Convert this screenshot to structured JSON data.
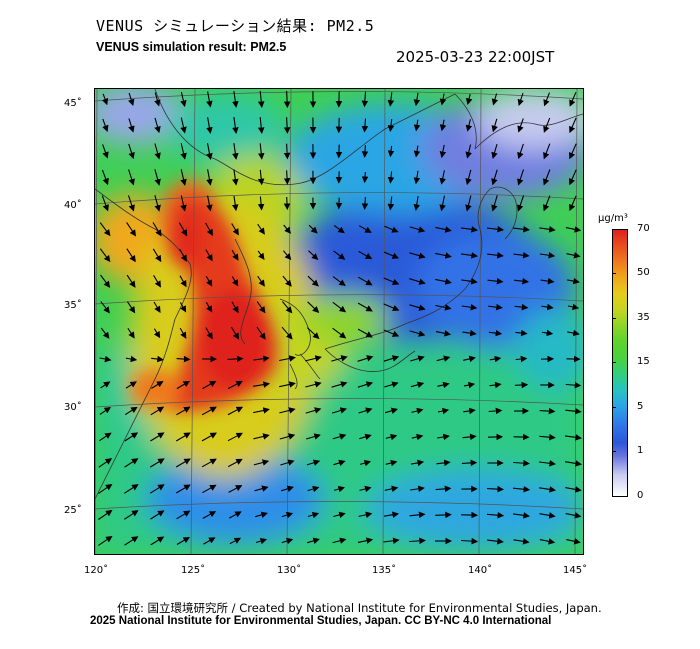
{
  "header": {
    "title_jp": "VENUS シミュレーション結果: PM2.5",
    "title_en": "VENUS simulation result: PM2.5",
    "timestamp": "2025-03-23 22:00JST"
  },
  "map": {
    "latitude_labels": [
      "45˚",
      "40˚",
      "35˚",
      "30˚",
      "25˚"
    ],
    "longitude_labels": [
      "120˚",
      "125˚",
      "130˚",
      "135˚",
      "140˚",
      "145˚"
    ]
  },
  "colorbar": {
    "unit": "µg/m³",
    "tick_labels": [
      "70",
      "50",
      "35",
      "15",
      "5",
      "1",
      "0"
    ],
    "colors": {
      "low": "#ffffff",
      "blue": "#2a58d8",
      "cyan": "#27c4c0",
      "green": "#4ad23d",
      "yellow": "#e6cc1c",
      "orange": "#ee7a1e",
      "high": "#e0201e"
    }
  },
  "footer": {
    "credit_jp": "作成: 国立環境研究所 / Created by National Institute for Environmental Studies, Japan.",
    "credit_en": "2025 National Institute for Environmental Studies, Japan. CC BY-NC 4.0 International"
  }
}
